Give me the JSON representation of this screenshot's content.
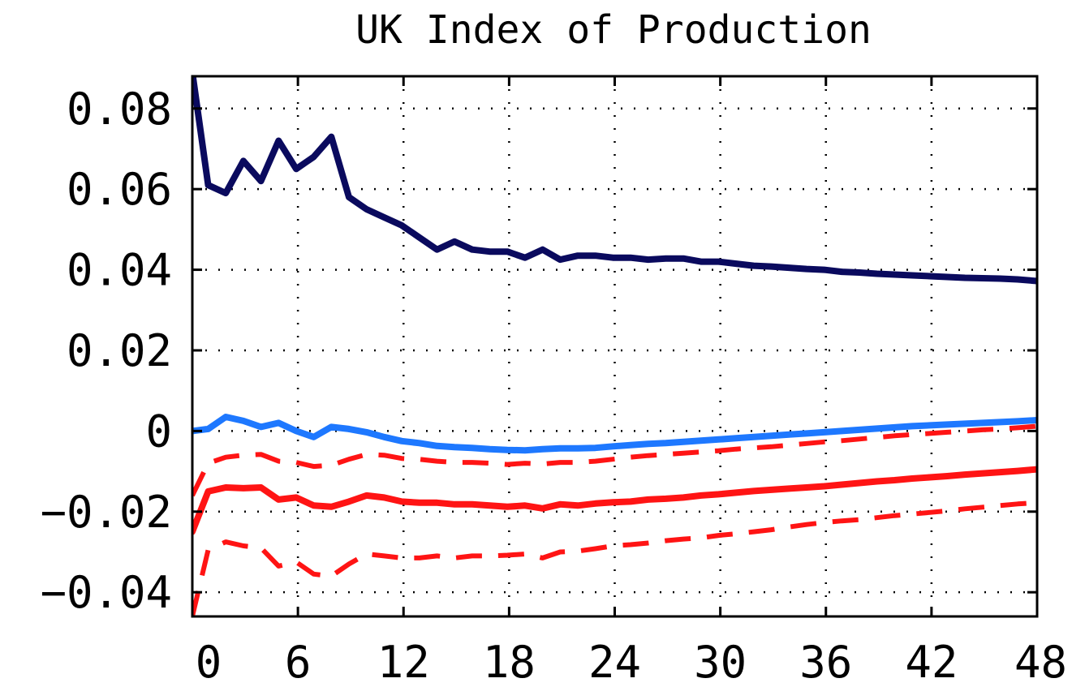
{
  "chart_data": {
    "type": "line",
    "title": "UK Index of Production",
    "xlabel": "",
    "ylabel": "",
    "xlim": [
      0,
      48
    ],
    "ylim": [
      -0.046,
      0.088
    ],
    "x_ticks": [
      0,
      6,
      12,
      18,
      24,
      30,
      36,
      42,
      48
    ],
    "x_tick_labels": [
      "0",
      "6",
      "12",
      "18",
      "24",
      "30",
      "36",
      "42",
      "48"
    ],
    "y_ticks": [
      0.08,
      0.06,
      0.04,
      0.02,
      0,
      -0.02,
      -0.04
    ],
    "y_tick_labels": [
      "0.08",
      "0.06",
      "0.04",
      "0.02",
      "0",
      "−0.02",
      "−0.04"
    ],
    "grid": true,
    "legend": "none",
    "series": [
      {
        "color": "#0a0a5e",
        "style": "solid",
        "points": [
          [
            0,
            0.089
          ],
          [
            0.9,
            0.061
          ],
          [
            1.9,
            0.059
          ],
          [
            2.9,
            0.067
          ],
          [
            3.9,
            0.062
          ],
          [
            4.9,
            0.072
          ],
          [
            5.9,
            0.065
          ],
          [
            6.9,
            0.068
          ],
          [
            7.9,
            0.073
          ],
          [
            8.9,
            0.058
          ],
          [
            9.9,
            0.055
          ],
          [
            10.9,
            0.053
          ],
          [
            11.9,
            0.051
          ],
          [
            12.9,
            0.048
          ],
          [
            13.9,
            0.045
          ],
          [
            14.9,
            0.047
          ],
          [
            15.9,
            0.045
          ],
          [
            16.9,
            0.0445
          ],
          [
            17.9,
            0.0445
          ],
          [
            18.9,
            0.043
          ],
          [
            19.9,
            0.045
          ],
          [
            20.9,
            0.0425
          ],
          [
            21.9,
            0.0435
          ],
          [
            22.9,
            0.0435
          ],
          [
            23.9,
            0.043
          ],
          [
            24.9,
            0.043
          ],
          [
            25.9,
            0.0425
          ],
          [
            26.9,
            0.0428
          ],
          [
            27.9,
            0.0428
          ],
          [
            28.9,
            0.042
          ],
          [
            29.9,
            0.042
          ],
          [
            30.9,
            0.0415
          ],
          [
            31.9,
            0.041
          ],
          [
            32.9,
            0.0408
          ],
          [
            33.9,
            0.0405
          ],
          [
            34.9,
            0.0402
          ],
          [
            35.9,
            0.04
          ],
          [
            36.9,
            0.0395
          ],
          [
            37.9,
            0.0393
          ],
          [
            38.9,
            0.039
          ],
          [
            39.9,
            0.0388
          ],
          [
            40.9,
            0.0386
          ],
          [
            41.9,
            0.0384
          ],
          [
            42.9,
            0.0382
          ],
          [
            43.9,
            0.038
          ],
          [
            44.9,
            0.0379
          ],
          [
            45.9,
            0.0378
          ],
          [
            46.9,
            0.0376
          ],
          [
            48,
            0.0372
          ]
        ]
      },
      {
        "color": "#1e78ff",
        "style": "solid",
        "points": [
          [
            0,
            0
          ],
          [
            0.9,
            0.0005
          ],
          [
            1.9,
            0.0035
          ],
          [
            2.9,
            0.0025
          ],
          [
            3.9,
            0.001
          ],
          [
            4.9,
            0.002
          ],
          [
            5.9,
            0
          ],
          [
            6.9,
            -0.0015
          ],
          [
            7.9,
            0.001
          ],
          [
            8.9,
            0.0005
          ],
          [
            9.9,
            -0.0003
          ],
          [
            10.9,
            -0.0015
          ],
          [
            11.9,
            -0.0025
          ],
          [
            12.9,
            -0.003
          ],
          [
            13.9,
            -0.0037
          ],
          [
            14.9,
            -0.004
          ],
          [
            15.9,
            -0.0042
          ],
          [
            16.9,
            -0.0045
          ],
          [
            17.9,
            -0.0047
          ],
          [
            18.9,
            -0.0048
          ],
          [
            19.9,
            -0.0045
          ],
          [
            20.9,
            -0.0043
          ],
          [
            21.9,
            -0.0043
          ],
          [
            22.9,
            -0.0042
          ],
          [
            23.9,
            -0.0038
          ],
          [
            24.9,
            -0.0035
          ],
          [
            25.9,
            -0.0032
          ],
          [
            26.9,
            -0.003
          ],
          [
            27.9,
            -0.0027
          ],
          [
            28.9,
            -0.0024
          ],
          [
            29.9,
            -0.0021
          ],
          [
            30.9,
            -0.0018
          ],
          [
            31.9,
            -0.0015
          ],
          [
            32.9,
            -0.0012
          ],
          [
            33.9,
            -0.0009
          ],
          [
            34.9,
            -0.0006
          ],
          [
            35.9,
            -0.0003
          ],
          [
            36.9,
            0
          ],
          [
            37.9,
            0.0003
          ],
          [
            38.9,
            0.0006
          ],
          [
            39.9,
            0.0009
          ],
          [
            40.9,
            0.0012
          ],
          [
            41.9,
            0.0014
          ],
          [
            42.9,
            0.0016
          ],
          [
            43.9,
            0.0018
          ],
          [
            44.9,
            0.002
          ],
          [
            45.9,
            0.0022
          ],
          [
            46.9,
            0.0024
          ],
          [
            48,
            0.0027
          ]
        ]
      },
      {
        "color": "#ff1414",
        "style": "solid",
        "points": [
          [
            0,
            -0.025
          ],
          [
            0.9,
            -0.015
          ],
          [
            1.9,
            -0.014
          ],
          [
            2.9,
            -0.0142
          ],
          [
            3.9,
            -0.014
          ],
          [
            4.9,
            -0.017
          ],
          [
            5.9,
            -0.0165
          ],
          [
            6.9,
            -0.0185
          ],
          [
            7.9,
            -0.0188
          ],
          [
            8.9,
            -0.0175
          ],
          [
            9.9,
            -0.016
          ],
          [
            10.9,
            -0.0165
          ],
          [
            11.9,
            -0.0175
          ],
          [
            12.9,
            -0.0178
          ],
          [
            13.9,
            -0.0178
          ],
          [
            14.9,
            -0.0182
          ],
          [
            15.9,
            -0.0182
          ],
          [
            16.9,
            -0.0185
          ],
          [
            17.9,
            -0.0188
          ],
          [
            18.9,
            -0.0185
          ],
          [
            19.9,
            -0.0192
          ],
          [
            20.9,
            -0.0182
          ],
          [
            21.9,
            -0.0185
          ],
          [
            22.9,
            -0.018
          ],
          [
            23.9,
            -0.0177
          ],
          [
            24.9,
            -0.0175
          ],
          [
            25.9,
            -0.017
          ],
          [
            26.9,
            -0.0168
          ],
          [
            27.9,
            -0.0165
          ],
          [
            28.9,
            -0.016
          ],
          [
            29.9,
            -0.0157
          ],
          [
            30.9,
            -0.0153
          ],
          [
            31.9,
            -0.0149
          ],
          [
            32.9,
            -0.0146
          ],
          [
            33.9,
            -0.0143
          ],
          [
            34.9,
            -0.014
          ],
          [
            35.9,
            -0.0137
          ],
          [
            36.9,
            -0.0133
          ],
          [
            37.9,
            -0.0129
          ],
          [
            38.9,
            -0.0125
          ],
          [
            39.9,
            -0.0122
          ],
          [
            40.9,
            -0.0118
          ],
          [
            41.9,
            -0.0115
          ],
          [
            42.9,
            -0.0112
          ],
          [
            43.9,
            -0.0108
          ],
          [
            44.9,
            -0.0105
          ],
          [
            45.9,
            -0.0102
          ],
          [
            46.9,
            -0.0099
          ],
          [
            48,
            -0.0095
          ]
        ]
      },
      {
        "color": "#ff1414",
        "style": "dashed",
        "points": [
          [
            0,
            -0.016
          ],
          [
            0.9,
            -0.008
          ],
          [
            1.9,
            -0.0065
          ],
          [
            2.9,
            -0.006
          ],
          [
            3.9,
            -0.0058
          ],
          [
            4.9,
            -0.0075
          ],
          [
            5.9,
            -0.0078
          ],
          [
            6.9,
            -0.0088
          ],
          [
            7.9,
            -0.0085
          ],
          [
            8.9,
            -0.007
          ],
          [
            9.9,
            -0.0058
          ],
          [
            10.9,
            -0.006
          ],
          [
            11.9,
            -0.0068
          ],
          [
            12.9,
            -0.007
          ],
          [
            13.9,
            -0.0075
          ],
          [
            14.9,
            -0.0078
          ],
          [
            15.9,
            -0.0078
          ],
          [
            16.9,
            -0.008
          ],
          [
            17.9,
            -0.0083
          ],
          [
            18.9,
            -0.008
          ],
          [
            19.9,
            -0.0082
          ],
          [
            20.9,
            -0.0078
          ],
          [
            21.9,
            -0.0078
          ],
          [
            22.9,
            -0.0075
          ],
          [
            23.9,
            -0.007
          ],
          [
            24.9,
            -0.0065
          ],
          [
            25.9,
            -0.0061
          ],
          [
            26.9,
            -0.0058
          ],
          [
            27.9,
            -0.0055
          ],
          [
            28.9,
            -0.0052
          ],
          [
            29.9,
            -0.0049
          ],
          [
            30.9,
            -0.0045
          ],
          [
            31.9,
            -0.0042
          ],
          [
            32.9,
            -0.0039
          ],
          [
            33.9,
            -0.0035
          ],
          [
            34.9,
            -0.0031
          ],
          [
            35.9,
            -0.0027
          ],
          [
            36.9,
            -0.0024
          ],
          [
            37.9,
            -0.002
          ],
          [
            38.9,
            -0.0016
          ],
          [
            39.9,
            -0.0012
          ],
          [
            40.9,
            -0.0009
          ],
          [
            41.9,
            -0.0006
          ],
          [
            42.9,
            -0.0003
          ],
          [
            43.9,
            0
          ],
          [
            44.9,
            0.0003
          ],
          [
            45.9,
            0.0005
          ],
          [
            46.9,
            0.0008
          ],
          [
            48,
            0.0012
          ]
        ]
      },
      {
        "color": "#ff1414",
        "style": "dashed",
        "points": [
          [
            0,
            -0.046
          ],
          [
            0.9,
            -0.0295
          ],
          [
            1.9,
            -0.0275
          ],
          [
            2.9,
            -0.0285
          ],
          [
            3.9,
            -0.029
          ],
          [
            4.9,
            -0.0335
          ],
          [
            5.9,
            -0.0325
          ],
          [
            6.9,
            -0.0355
          ],
          [
            7.9,
            -0.036
          ],
          [
            8.9,
            -0.033
          ],
          [
            9.9,
            -0.0305
          ],
          [
            10.9,
            -0.031
          ],
          [
            11.9,
            -0.0315
          ],
          [
            12.9,
            -0.0315
          ],
          [
            13.9,
            -0.031
          ],
          [
            14.9,
            -0.0315
          ],
          [
            15.9,
            -0.031
          ],
          [
            16.9,
            -0.031
          ],
          [
            17.9,
            -0.0308
          ],
          [
            18.9,
            -0.0305
          ],
          [
            19.9,
            -0.0315
          ],
          [
            20.9,
            -0.03
          ],
          [
            21.9,
            -0.0298
          ],
          [
            22.9,
            -0.0292
          ],
          [
            23.9,
            -0.0285
          ],
          [
            24.9,
            -0.0282
          ],
          [
            25.9,
            -0.0278
          ],
          [
            26.9,
            -0.0272
          ],
          [
            27.9,
            -0.0268
          ],
          [
            28.9,
            -0.0265
          ],
          [
            29.9,
            -0.0259
          ],
          [
            30.9,
            -0.0255
          ],
          [
            31.9,
            -0.025
          ],
          [
            32.9,
            -0.0245
          ],
          [
            33.9,
            -0.0238
          ],
          [
            34.9,
            -0.0232
          ],
          [
            35.9,
            -0.0227
          ],
          [
            36.9,
            -0.0223
          ],
          [
            37.9,
            -0.022
          ],
          [
            38.9,
            -0.0215
          ],
          [
            39.9,
            -0.021
          ],
          [
            40.9,
            -0.0206
          ],
          [
            41.9,
            -0.0202
          ],
          [
            42.9,
            -0.0198
          ],
          [
            43.9,
            -0.0193
          ],
          [
            44.9,
            -0.0189
          ],
          [
            45.9,
            -0.0185
          ],
          [
            46.9,
            -0.0181
          ],
          [
            48,
            -0.0178
          ]
        ]
      }
    ]
  }
}
